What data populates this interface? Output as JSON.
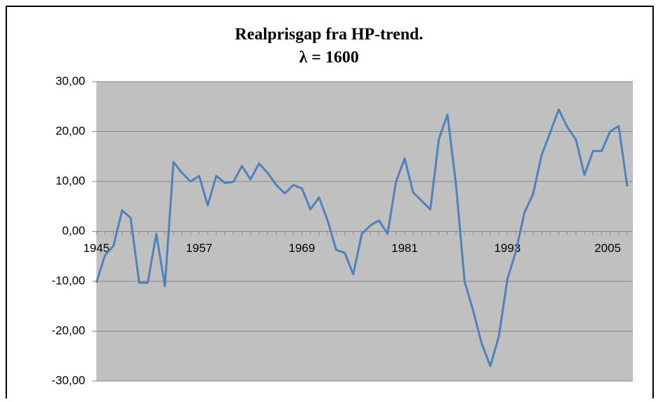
{
  "chart_data": {
    "type": "line",
    "title": "Realprisgap fra HP-trend.",
    "subtitle": "λ = 1600",
    "categories": [
      "1945",
      null,
      null,
      null,
      null,
      null,
      null,
      null,
      null,
      null,
      null,
      null,
      "1957",
      null,
      null,
      null,
      null,
      null,
      null,
      null,
      null,
      null,
      null,
      null,
      "1969",
      null,
      null,
      null,
      null,
      null,
      null,
      null,
      null,
      null,
      null,
      null,
      "1981",
      null,
      null,
      null,
      null,
      null,
      null,
      null,
      null,
      null,
      null,
      null,
      "1993",
      null,
      null,
      null,
      null,
      null,
      null,
      null,
      null,
      null,
      null,
      null,
      "2005",
      null,
      null
    ],
    "values": [
      -10.3,
      -4.8,
      -2.9,
      4.2,
      2.7,
      -10.3,
      -10.3,
      -0.5,
      -11.0,
      13.9,
      11.7,
      10.0,
      11.1,
      5.2,
      11.1,
      9.7,
      9.9,
      13.1,
      10.4,
      13.6,
      11.7,
      9.3,
      7.6,
      9.3,
      8.6,
      4.4,
      6.8,
      2.2,
      -3.7,
      -4.3,
      -8.6,
      -0.5,
      1.2,
      2.2,
      -0.5,
      10.0,
      14.6,
      7.8,
      6.1,
      4.4,
      18.5,
      23.4,
      9.4,
      -10.0,
      -15.9,
      -22.5,
      -27.0,
      -21.1,
      -9.6,
      -4.0,
      3.8,
      7.5,
      15.3,
      19.8,
      24.4,
      20.9,
      18.4,
      11.3,
      16.1,
      16.1,
      20.0,
      21.1,
      9.0
    ],
    "color": "#4f81bd",
    "ylim": [
      -30,
      30
    ],
    "yticks": [
      {
        "value": -30,
        "label": "-30,00"
      },
      {
        "value": -20,
        "label": "-20,00"
      },
      {
        "value": -10,
        "label": "-10,00"
      },
      {
        "value": 0,
        "label": "0,00"
      },
      {
        "value": 10,
        "label": "10,00"
      },
      {
        "value": 20,
        "label": "20,00"
      },
      {
        "value": 30,
        "label": "30,00"
      }
    ],
    "grid": true
  }
}
